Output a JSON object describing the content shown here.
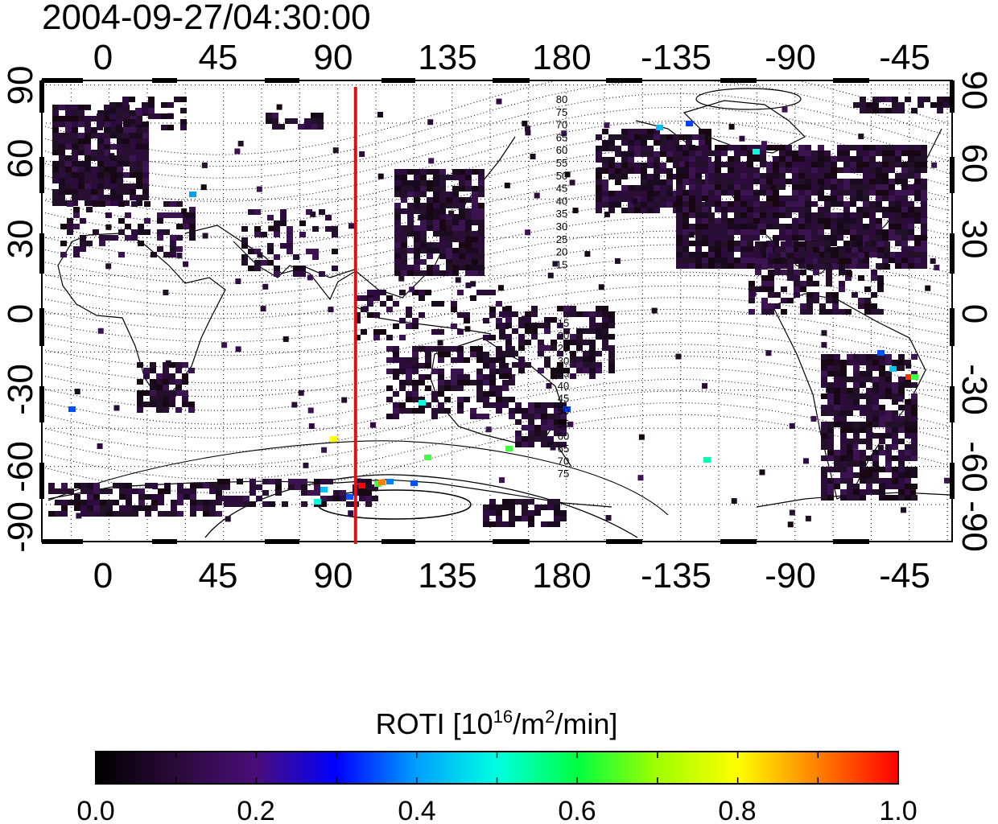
{
  "map": {
    "timestamp": "2004-09-27/04:30:00",
    "top_lon_ticks": [
      "0",
      "45",
      "90",
      "135",
      "180",
      "-135",
      "-90",
      "-45"
    ],
    "bottom_lon_ticks": [
      "0",
      "45",
      "90",
      "135",
      "180",
      "-135",
      "-90",
      "-45"
    ],
    "left_lat_ticks": [
      "90",
      "60",
      "30",
      "0",
      "-30",
      "-60",
      "-90"
    ],
    "right_lat_ticks": [
      "90",
      "60",
      "30",
      "0",
      "-30",
      "-60",
      "-90"
    ],
    "marker_longitude": 112,
    "marker_color": "#dd1111",
    "north_contour_labels": [
      "80",
      "75",
      "70",
      "65",
      "60",
      "55",
      "50",
      "45",
      "40",
      "35",
      "30",
      "25",
      "20",
      "15"
    ],
    "south_contour_labels": [
      "15",
      "20",
      "25",
      "30",
      "35",
      "40",
      "45",
      "50",
      "55",
      "60",
      "65",
      "70",
      "75"
    ]
  },
  "colorbar": {
    "title_prefix": "ROTI  [10",
    "title_sup1": "16",
    "title_mid": "/m",
    "title_sup2": "2",
    "title_suffix": "/min]",
    "ticks": [
      "0.0",
      "0.2",
      "0.4",
      "0.6",
      "0.8",
      "1.0"
    ],
    "range": [
      0.0,
      1.0
    ],
    "colormap": [
      "#000000",
      "#2a0a3a",
      "#4b0d7a",
      "#0000ff",
      "#00a0ff",
      "#00ffe0",
      "#00ff40",
      "#a0ff00",
      "#ffff00",
      "#ff8000",
      "#ff0000"
    ]
  }
}
